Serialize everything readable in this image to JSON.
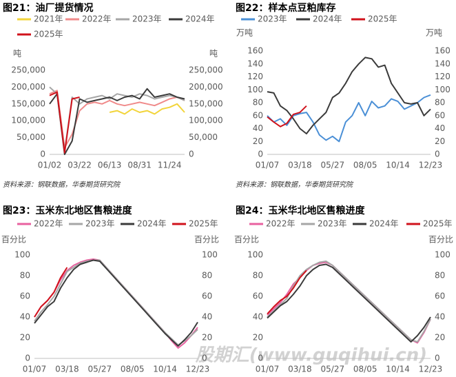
{
  "chart_data": [
    {
      "type": "line",
      "title": "图21：油厂提货情况",
      "y_label": "吨",
      "y2_label": "吨",
      "source": "资料来源：钢联数据，华泰期货研究院",
      "categories": [
        "01/02",
        null,
        null,
        null,
        "03/22",
        null,
        null,
        null,
        "06/13",
        null,
        null,
        null,
        "08/31",
        null,
        null,
        null,
        "11/24",
        null,
        null
      ],
      "series": [
        {
          "name": "2021年",
          "color": "#f2d43a",
          "values": [
            null,
            null,
            null,
            null,
            null,
            null,
            null,
            null,
            125000,
            130000,
            120000,
            135000,
            125000,
            130000,
            120000,
            135000,
            140000,
            150000,
            125000
          ]
        },
        {
          "name": "2022年",
          "color": "#f08a8a",
          "values": [
            180000,
            190000,
            20000,
            60000,
            130000,
            150000,
            155000,
            150000,
            160000,
            150000,
            145000,
            150000,
            155000,
            150000,
            145000,
            155000,
            165000,
            170000,
            160000
          ]
        },
        {
          "name": "2023年",
          "color": "#a6a6a6",
          "values": [
            200000,
            180000,
            10000,
            170000,
            150000,
            165000,
            170000,
            175000,
            165000,
            180000,
            175000,
            170000,
            180000,
            175000,
            165000,
            170000,
            175000,
            170000,
            160000
          ]
        },
        {
          "name": "2024年",
          "color": "#3a3a3a",
          "values": [
            150000,
            180000,
            0,
            40000,
            165000,
            155000,
            160000,
            165000,
            170000,
            160000,
            170000,
            175000,
            165000,
            195000,
            170000,
            175000,
            180000,
            170000,
            165000
          ]
        },
        {
          "name": "2025年",
          "color": "#d0121b",
          "values": [
            175000,
            185000,
            5000,
            165000,
            170000,
            null,
            null,
            null,
            null,
            null,
            null,
            null,
            null,
            null,
            null,
            null,
            null,
            null,
            null
          ]
        }
      ],
      "ylim": [
        0,
        250000
      ],
      "yticks": [
        {
          "value": 0,
          "label": "0"
        },
        {
          "value": 50000,
          "label": "50,000"
        },
        {
          "value": 100000,
          "label": "100,000"
        },
        {
          "value": 150000,
          "label": "150,000"
        },
        {
          "value": 200000,
          "label": "200,000"
        },
        {
          "value": 250000,
          "label": "250,000"
        }
      ],
      "y2lim": [
        0,
        250000
      ],
      "y2ticks": [
        {
          "value": 0,
          "label": "0"
        },
        {
          "value": 50000,
          "label": "50,000"
        },
        {
          "value": 100000,
          "label": "100,000"
        },
        {
          "value": 150000,
          "label": "150,000"
        },
        {
          "value": 200000,
          "label": "200,000"
        },
        {
          "value": 250000,
          "label": "250,000"
        }
      ]
    },
    {
      "type": "line",
      "title": "图22：样本点豆粕库存",
      "y_label": "万吨",
      "y2_label": "万吨",
      "source": "资料来源：钢联数据，华泰期货研究院",
      "categories": [
        "01/07",
        null,
        null,
        null,
        null,
        "03/18",
        null,
        null,
        null,
        null,
        "05/27",
        null,
        null,
        null,
        null,
        "08/05",
        null,
        null,
        null,
        null,
        "10/14",
        null,
        null,
        null,
        null,
        "12/23"
      ],
      "series": [
        {
          "name": "2023年",
          "color": "#4a8fd6",
          "values": [
            60,
            50,
            55,
            45,
            60,
            63,
            65,
            50,
            30,
            22,
            28,
            20,
            50,
            60,
            80,
            60,
            82,
            72,
            75,
            86,
            82,
            70,
            75,
            80,
            88,
            92
          ]
        },
        {
          "name": "2024年",
          "color": "#3a3a3a",
          "values": [
            97,
            95,
            75,
            68,
            55,
            40,
            32,
            45,
            55,
            65,
            88,
            95,
            110,
            128,
            140,
            150,
            148,
            135,
            138,
            110,
            95,
            80,
            78,
            80,
            60,
            70
          ]
        },
        {
          "name": "2025年",
          "color": "#d0121b",
          "values": [
            58,
            50,
            43,
            48,
            62,
            65,
            75,
            null,
            null,
            null,
            null,
            null,
            null,
            null,
            null,
            null,
            null,
            null,
            null,
            null,
            null,
            null,
            null,
            null,
            null,
            null
          ]
        }
      ],
      "ylim": [
        0,
        160
      ],
      "yticks": [
        0,
        20,
        40,
        60,
        80,
        100,
        120,
        140,
        160
      ],
      "y2lim": [
        0,
        160
      ],
      "y2ticks": [
        0,
        20,
        40,
        60,
        80,
        100,
        120,
        140,
        160
      ]
    },
    {
      "type": "line",
      "title": "图23：玉米东北地区售粮进度",
      "y_label": "百分比",
      "y2_label": "百分比",
      "categories": [
        "01/07",
        null,
        null,
        null,
        null,
        "03/18",
        null,
        null,
        null,
        null,
        "05/27",
        null,
        null,
        null,
        null,
        "08/05",
        null,
        null,
        null,
        null,
        "10/14",
        null,
        null,
        null,
        null,
        "12/23"
      ],
      "series": [
        {
          "name": "2022年",
          "color": "#e8609f",
          "values": [
            40,
            50,
            56,
            64,
            76,
            85,
            90,
            93,
            95,
            96,
            95,
            88,
            81,
            74,
            67,
            60,
            53,
            46,
            39,
            32,
            25,
            17,
            10,
            15,
            22,
            30
          ]
        },
        {
          "name": "2023年",
          "color": "#a6a6a6",
          "values": [
            36,
            45,
            52,
            60,
            72,
            84,
            88,
            92,
            94,
            95,
            95,
            88,
            81,
            74,
            67,
            60,
            53,
            46,
            39,
            32,
            25,
            19,
            13,
            17,
            22,
            28
          ]
        },
        {
          "name": "2024年",
          "color": "#3a3a3a",
          "values": [
            34,
            42,
            50,
            55,
            68,
            78,
            86,
            91,
            93,
            95,
            94,
            87,
            80,
            73,
            66,
            59,
            52,
            45,
            38,
            31,
            24,
            18,
            12,
            18,
            25,
            35
          ]
        },
        {
          "name": "2025年",
          "color": "#d0121b",
          "values": [
            40,
            50,
            56,
            64,
            78,
            88,
            null,
            null,
            null,
            null,
            null,
            null,
            null,
            null,
            null,
            null,
            null,
            null,
            null,
            null,
            null,
            null,
            null,
            null,
            null,
            null
          ]
        }
      ],
      "ylim": [
        0,
        100
      ],
      "yticks": [
        0,
        20,
        40,
        60,
        80,
        100
      ],
      "y2lim": [
        0,
        100
      ],
      "y2ticks": [
        0,
        20,
        40,
        60,
        80,
        100
      ]
    },
    {
      "type": "line",
      "title": "图24：玉米华北地区售粮进度",
      "y_label": "百分比",
      "y2_label": "百分比",
      "categories": [
        "01/07",
        null,
        null,
        null,
        null,
        "03/18",
        null,
        null,
        null,
        null,
        "05/27",
        null,
        null,
        null,
        null,
        "08/05",
        null,
        null,
        null,
        null,
        "10/14",
        null,
        null,
        null,
        null,
        "12/23"
      ],
      "series": [
        {
          "name": "2022年",
          "color": "#e8609f",
          "values": [
            42,
            48,
            54,
            62,
            72,
            78,
            85,
            90,
            92,
            93,
            90,
            84,
            78,
            72,
            66,
            60,
            54,
            48,
            42,
            36,
            30,
            24,
            18,
            15,
            25,
            38
          ]
        },
        {
          "name": "2023年",
          "color": "#a6a6a6",
          "values": [
            40,
            46,
            52,
            58,
            70,
            80,
            86,
            90,
            93,
            94,
            90,
            84,
            78,
            72,
            66,
            60,
            54,
            48,
            42,
            36,
            30,
            24,
            18,
            16,
            26,
            38
          ]
        },
        {
          "name": "2024年",
          "color": "#3a3a3a",
          "values": [
            39,
            45,
            51,
            55,
            62,
            70,
            80,
            86,
            90,
            91,
            88,
            82,
            76,
            70,
            64,
            58,
            52,
            46,
            40,
            34,
            28,
            22,
            16,
            22,
            30,
            40
          ]
        },
        {
          "name": "2025年",
          "color": "#d0121b",
          "values": [
            43,
            50,
            56,
            60,
            68,
            78,
            85,
            null,
            null,
            null,
            null,
            null,
            null,
            null,
            null,
            null,
            null,
            null,
            null,
            null,
            null,
            null,
            null,
            null,
            null,
            null
          ]
        }
      ],
      "ylim": [
        0,
        100
      ],
      "yticks": [
        0,
        20,
        40,
        60,
        80,
        100
      ],
      "y2lim": [
        0,
        100
      ],
      "y2ticks": [
        0,
        20,
        40,
        60,
        80,
        100
      ]
    }
  ],
  "watermark": "股期汇(www.guqihui.cn)"
}
